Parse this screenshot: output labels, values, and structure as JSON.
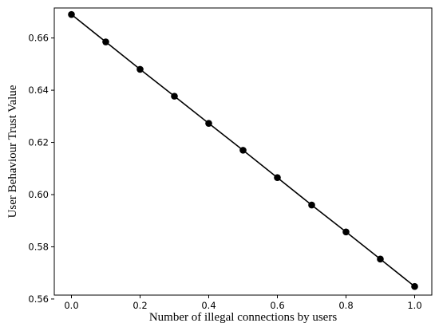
{
  "chart_data": {
    "type": "line",
    "xlabel": "Number of illegal connections by users",
    "ylabel": "User Behaviour Trust Value",
    "xlim": [
      -0.05,
      1.05
    ],
    "ylim": [
      0.5615,
      0.6715
    ],
    "x_ticks": [
      0.0,
      0.2,
      0.4,
      0.6,
      0.8,
      1.0
    ],
    "x_tick_labels": [
      "0.0",
      "0.2",
      "0.4",
      "0.6",
      "0.8",
      "1.0"
    ],
    "y_ticks": [
      0.56,
      0.58,
      0.6,
      0.62,
      0.64,
      0.66
    ],
    "y_tick_labels": [
      "0.56",
      "0.58",
      "0.60",
      "0.62",
      "0.64",
      "0.66"
    ],
    "grid": false,
    "legend": "none",
    "series": [
      {
        "color": "#000000",
        "marker": "circle",
        "x": [
          0.0,
          0.1,
          0.2,
          0.3,
          0.4,
          0.5,
          0.6,
          0.7,
          0.8,
          0.9,
          1.0
        ],
        "y": [
          0.669,
          0.6585,
          0.648,
          0.6377,
          0.6273,
          0.617,
          0.6065,
          0.596,
          0.5857,
          0.5753,
          0.5648
        ]
      }
    ]
  }
}
